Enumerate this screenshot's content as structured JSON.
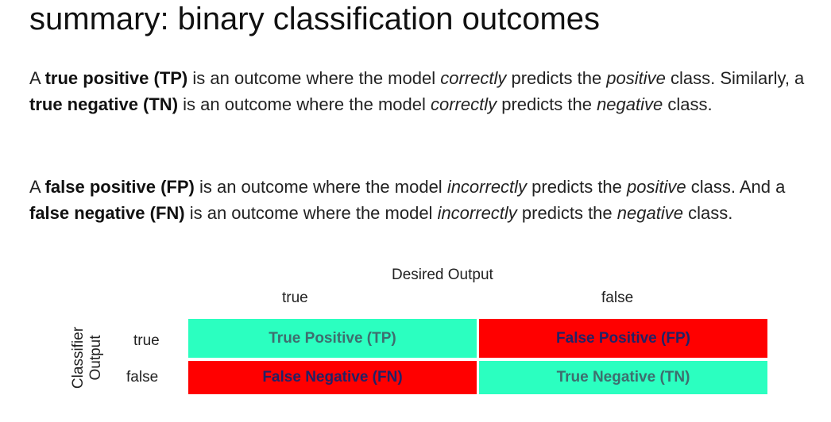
{
  "title": "summary: binary classification outcomes",
  "paragraph1": {
    "t1": "A ",
    "b1": "true positive (TP)",
    "t2": " is an outcome where the model ",
    "i1": "correctly",
    "t3": " predicts the ",
    "i2": "positive",
    "t4": " class. Similarly, a ",
    "b2": "true negative (TN)",
    "t5": " is an outcome where the model ",
    "i3": "correctly",
    "t6": " predicts the ",
    "i4": "negative",
    "t7": " class."
  },
  "paragraph2": {
    "t1": "A ",
    "b1": "false positive (FP)",
    "t2": " is an outcome where the model ",
    "i1": "incorrectly",
    "t3": " predicts the ",
    "i2": "positive",
    "t4": " class. And a ",
    "b2": "false negative (FN)",
    "t5": " is an outcome where the model ",
    "i3": "incorrectly",
    "t6": " predicts the ",
    "i4": "negative",
    "t7": " class."
  },
  "confusion_matrix": {
    "column_header": "Desired Output",
    "row_header": "Classifier Output",
    "row_header_lines": [
      "Classifier",
      "Output"
    ],
    "columns": [
      "true",
      "false"
    ],
    "rows": [
      "true",
      "false"
    ],
    "cells": [
      [
        "True Positive (TP)",
        "False Positive (FP)"
      ],
      [
        "False Negative (FN)",
        "True Negative (TN)"
      ]
    ],
    "colors": {
      "correct": "#2bffc0",
      "incorrect": "#ff0000"
    }
  }
}
